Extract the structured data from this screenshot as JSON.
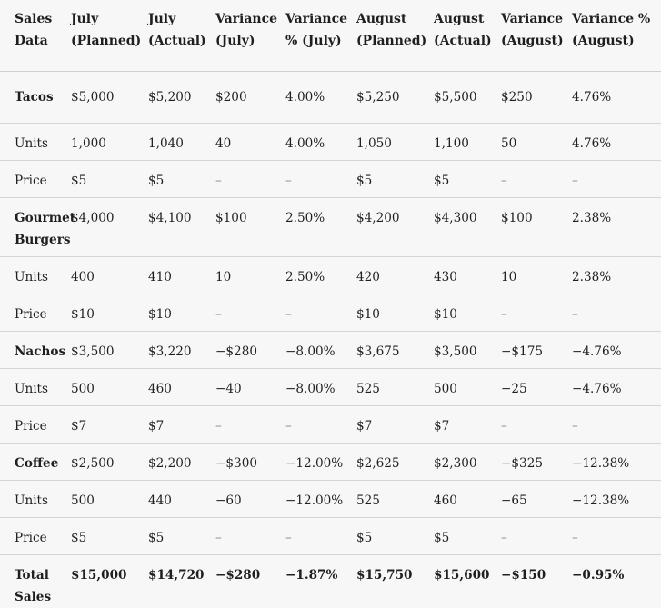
{
  "headers": [
    "Sales Data",
    "July (Planned)",
    "July (Actual)",
    "Variance (July)",
    "Variance % (July)",
    "August (Planned)",
    "August (Actual)",
    "Variance (August)",
    "Variance % (August)"
  ],
  "rows": [
    {
      "kind": "group",
      "cells": [
        "Tacos",
        "$5,000",
        "$5,200",
        "$200",
        "4.00%",
        "$5,250",
        "$5,500",
        "$250",
        "4.76%"
      ]
    },
    {
      "kind": "sub",
      "cells": [
        "Units",
        "1,000",
        "1,040",
        "40",
        "4.00%",
        "1,050",
        "1,100",
        "50",
        "4.76%"
      ]
    },
    {
      "kind": "sub",
      "cells": [
        "Price",
        "$5",
        "$5",
        "–",
        "–",
        "$5",
        "$5",
        "–",
        "–"
      ]
    },
    {
      "kind": "group",
      "cells": [
        "Gourmet Burgers",
        "$4,000",
        "$4,100",
        "$100",
        "2.50%",
        "$4,200",
        "$4,300",
        "$100",
        "2.38%"
      ]
    },
    {
      "kind": "sub",
      "cells": [
        "Units",
        "400",
        "410",
        "10",
        "2.50%",
        "420",
        "430",
        "10",
        "2.38%"
      ]
    },
    {
      "kind": "sub",
      "cells": [
        "Price",
        "$10",
        "$10",
        "–",
        "–",
        "$10",
        "$10",
        "–",
        "–"
      ]
    },
    {
      "kind": "group",
      "cells": [
        "Nachos",
        "$3,500",
        "$3,220",
        "−$280",
        "−8.00%",
        "$3,675",
        "$3,500",
        "−$175",
        "−4.76%"
      ]
    },
    {
      "kind": "sub",
      "cells": [
        "Units",
        "500",
        "460",
        "−40",
        "−8.00%",
        "525",
        "500",
        "−25",
        "−4.76%"
      ]
    },
    {
      "kind": "sub",
      "cells": [
        "Price",
        "$7",
        "$7",
        "–",
        "–",
        "$7",
        "$7",
        "–",
        "–"
      ]
    },
    {
      "kind": "group",
      "cells": [
        "Coffee",
        "$2,500",
        "$2,200",
        "−$300",
        "−12.00%",
        "$2,625",
        "$2,300",
        "−$325",
        "−12.38%"
      ]
    },
    {
      "kind": "sub",
      "cells": [
        "Units",
        "500",
        "440",
        "−60",
        "−12.00%",
        "525",
        "460",
        "−65",
        "−12.38%"
      ]
    },
    {
      "kind": "sub",
      "cells": [
        "Price",
        "$5",
        "$5",
        "–",
        "–",
        "$5",
        "$5",
        "–",
        "–"
      ]
    },
    {
      "kind": "total",
      "cells": [
        "Total Sales",
        "$15,000",
        "$14,720",
        "−$280",
        "−1.87%",
        "$15,750",
        "$15,600",
        "−$150",
        "−0.95%"
      ]
    }
  ]
}
